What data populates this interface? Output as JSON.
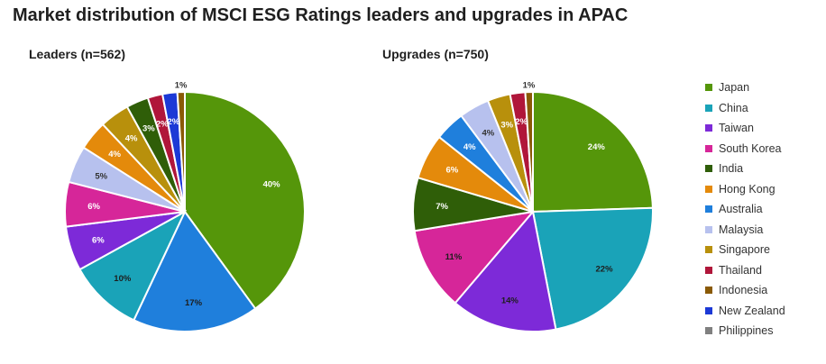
{
  "title": "Market distribution of MSCI ESG Ratings leaders and upgrades in APAC",
  "legend": [
    {
      "label": "Japan",
      "color": "#55960a"
    },
    {
      "label": "China",
      "color": "#1aa3b8"
    },
    {
      "label": "Taiwan",
      "color": "#7d2ad8"
    },
    {
      "label": "South Korea",
      "color": "#d62699"
    },
    {
      "label": "India",
      "color": "#2f5e08"
    },
    {
      "label": "Hong Kong",
      "color": "#e48a0b"
    },
    {
      "label": "Australia",
      "color": "#1f7fdc"
    },
    {
      "label": "Malaysia",
      "color": "#b7c1ee"
    },
    {
      "label": "Singapore",
      "color": "#b8900c"
    },
    {
      "label": "Thailand",
      "color": "#b0163a"
    },
    {
      "label": "Indonesia",
      "color": "#8a5a06"
    },
    {
      "label": "New Zealand",
      "color": "#1c39d6"
    },
    {
      "label": "Philippines",
      "color": "#808080"
    }
  ],
  "chart_data": [
    {
      "type": "pie",
      "title": "Leaders (n=562)",
      "slices": [
        {
          "name": "Japan",
          "value": 40,
          "label": "40%"
        },
        {
          "name": "Australia",
          "value": 17,
          "label": "17%"
        },
        {
          "name": "China",
          "value": 10,
          "label": "10%"
        },
        {
          "name": "Taiwan",
          "value": 6,
          "label": "6%"
        },
        {
          "name": "South Korea",
          "value": 6,
          "label": "6%"
        },
        {
          "name": "Malaysia",
          "value": 5,
          "label": "5%"
        },
        {
          "name": "Hong Kong",
          "value": 4,
          "label": "4%"
        },
        {
          "name": "Singapore",
          "value": 4,
          "label": "4%"
        },
        {
          "name": "India",
          "value": 3,
          "label": "3%"
        },
        {
          "name": "Thailand",
          "value": 2,
          "label": "2%"
        },
        {
          "name": "New Zealand",
          "value": 2,
          "label": "2%"
        },
        {
          "name": "Indonesia",
          "value": 1,
          "label": "1%"
        }
      ]
    },
    {
      "type": "pie",
      "title": "Upgrades (n=750)",
      "slices": [
        {
          "name": "Japan",
          "value": 24,
          "label": "24%"
        },
        {
          "name": "China",
          "value": 22,
          "label": "22%"
        },
        {
          "name": "Taiwan",
          "value": 14,
          "label": "14%"
        },
        {
          "name": "South Korea",
          "value": 11,
          "label": "11%"
        },
        {
          "name": "India",
          "value": 7,
          "label": "7%"
        },
        {
          "name": "Hong Kong",
          "value": 6,
          "label": "6%"
        },
        {
          "name": "Australia",
          "value": 4,
          "label": "4%"
        },
        {
          "name": "Malaysia",
          "value": 4,
          "label": "4%"
        },
        {
          "name": "Singapore",
          "value": 3,
          "label": "3%"
        },
        {
          "name": "Thailand",
          "value": 2,
          "label": "2%"
        },
        {
          "name": "Indonesia",
          "value": 1,
          "label": "1%"
        }
      ]
    }
  ]
}
